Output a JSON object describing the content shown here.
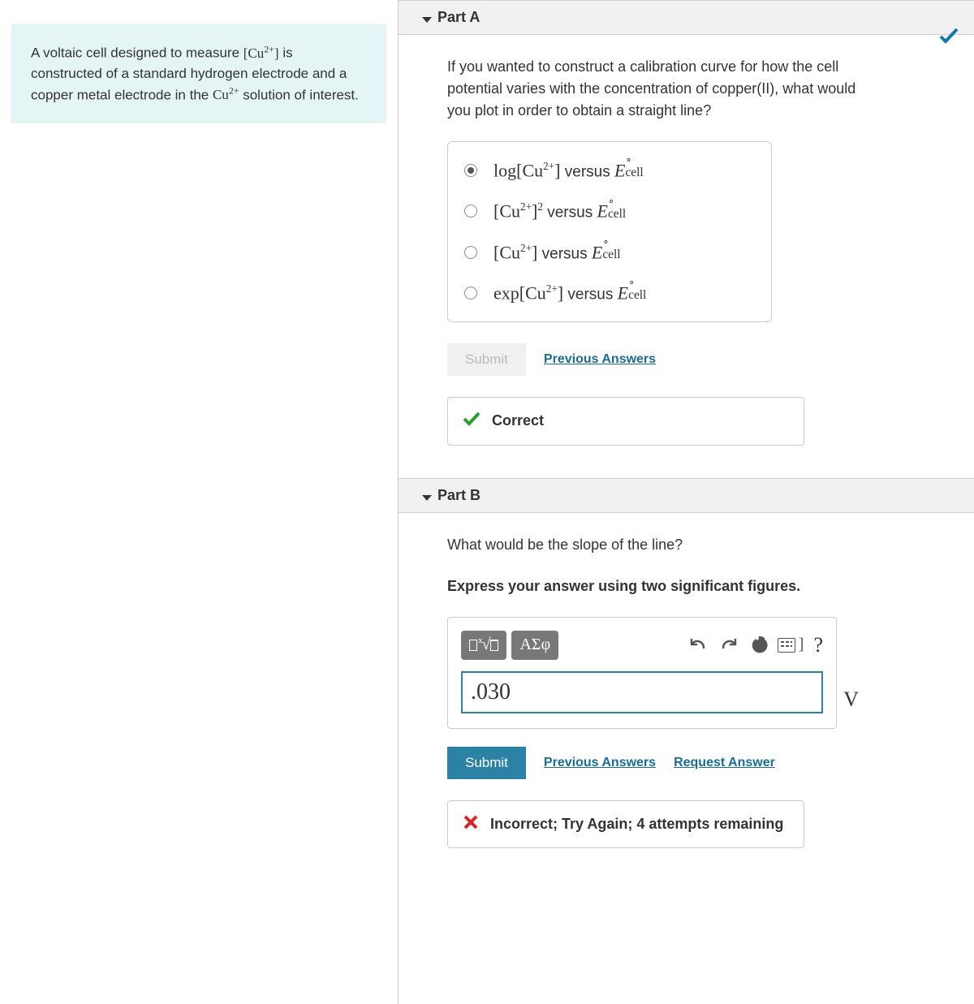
{
  "problem": {
    "before_cu1": "A voltaic cell designed to measure ",
    "cu1_base": "[Cu",
    "cu1_sup": "2+",
    "cu1_close": "]",
    "after_cu1": " is constructed of a standard hydrogen electrode and a copper metal electrode in the ",
    "cu2_base": "Cu",
    "cu2_sup": "2+",
    "after_cu2": " solution of interest."
  },
  "partA": {
    "title": "Part A",
    "question": "If you wanted to construct a calibration curve for how the cell potential varies with the concentration of copper(II), what would you plot in order to obtain a straight line?",
    "choices": [
      {
        "prefix": "log[",
        "base": "Cu",
        "sup": "2+",
        "close": "]",
        "vs": " versus ",
        "E": "E",
        "deg": "∘",
        "sub": "cell",
        "selected": true
      },
      {
        "prefix": "[",
        "base": "Cu",
        "sup": "2+",
        "close": "]",
        "outer_sup": "2",
        "vs": " versus ",
        "E": "E",
        "deg": "∘",
        "sub": "cell",
        "selected": false
      },
      {
        "prefix": "[",
        "base": "Cu",
        "sup": "2+",
        "close": "]",
        "vs": " versus ",
        "E": "E",
        "deg": "∘",
        "sub": "cell",
        "selected": false
      },
      {
        "prefix": "exp[",
        "base": "Cu",
        "sup": "2+",
        "close": "]",
        "vs": " versus ",
        "E": "E",
        "deg": "∘",
        "sub": "cell",
        "selected": false
      }
    ],
    "submit_label": "Submit",
    "prev_label": "Previous Answers",
    "feedback": "Correct"
  },
  "partB": {
    "title": "Part B",
    "question": "What would be the slope of the line?",
    "instruction": "Express your answer using two significant figures.",
    "greek_label": "ΑΣφ",
    "value": ".030",
    "unit": "V",
    "submit_label": "Submit",
    "prev_label": "Previous Answers",
    "request_label": "Request Answer",
    "feedback": "Incorrect; Try Again; 4 attempts remaining"
  }
}
